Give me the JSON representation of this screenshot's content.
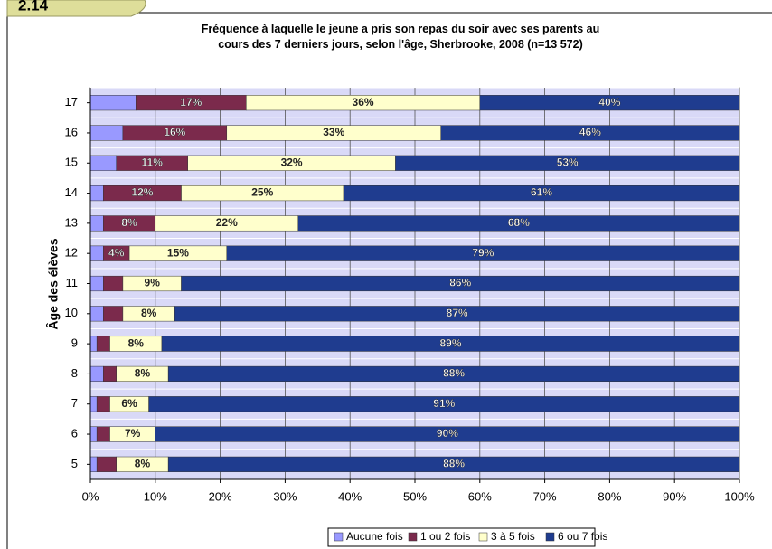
{
  "badge": "2.14",
  "chart_data": {
    "type": "stacked_barh",
    "title": "Fréquence à laquelle le jeune a pris son repas du soir avec ses parents au cours des 7 derniers jours, selon l'âge, Sherbrooke, 2008 (n=13 572)",
    "ylabel": "Âge des élèves",
    "categories": [
      "17",
      "16",
      "15",
      "14",
      "13",
      "12",
      "11",
      "10",
      "9",
      "8",
      "7",
      "6",
      "5"
    ],
    "series": [
      {
        "name": "Aucune fois",
        "color": "#9999ff",
        "values": [
          7,
          5,
          4,
          2,
          2,
          2,
          2,
          2,
          1,
          2,
          1,
          1,
          1
        ]
      },
      {
        "name": "1 ou 2 fois",
        "color": "#7b2a4c",
        "values": [
          17,
          16,
          11,
          12,
          8,
          4,
          3,
          3,
          2,
          2,
          2,
          2,
          3
        ],
        "value_labels": [
          "17%",
          "16%",
          "11%",
          "12%",
          "8%",
          "4%",
          null,
          null,
          null,
          null,
          null,
          null,
          null
        ]
      },
      {
        "name": "3 à 5 fois",
        "color": "#ffffcc",
        "values": [
          36,
          33,
          32,
          25,
          22,
          15,
          9,
          8,
          8,
          8,
          6,
          7,
          8
        ],
        "value_labels": [
          "36%",
          "33%",
          "32%",
          "25%",
          "22%",
          "15%",
          "9%",
          "8%",
          "8%",
          "8%",
          "6%",
          "7%",
          "8%"
        ]
      },
      {
        "name": "6 ou 7 fois",
        "color": "#1f3c8f",
        "values": [
          40,
          46,
          53,
          61,
          68,
          79,
          86,
          87,
          89,
          88,
          91,
          90,
          88
        ],
        "value_labels": [
          "40%",
          "46%",
          "53%",
          "61%",
          "68%",
          "79%",
          "86%",
          "87%",
          "89%",
          "88%",
          "91%",
          "90%",
          "88%"
        ]
      }
    ],
    "xlim": [
      0,
      100
    ],
    "xticks": [
      {
        "value": 0,
        "label": "0%"
      },
      {
        "value": 10,
        "label": "10%"
      },
      {
        "value": 20,
        "label": "20%"
      },
      {
        "value": 30,
        "label": "30%"
      },
      {
        "value": 40,
        "label": "40%"
      },
      {
        "value": 50,
        "label": "50%"
      },
      {
        "value": 60,
        "label": "60%"
      },
      {
        "value": 70,
        "label": "70%"
      },
      {
        "value": 80,
        "label": "80%"
      },
      {
        "value": 90,
        "label": "90%"
      },
      {
        "value": 100,
        "label": "100%"
      }
    ],
    "grid": true,
    "legend": "bottom"
  }
}
